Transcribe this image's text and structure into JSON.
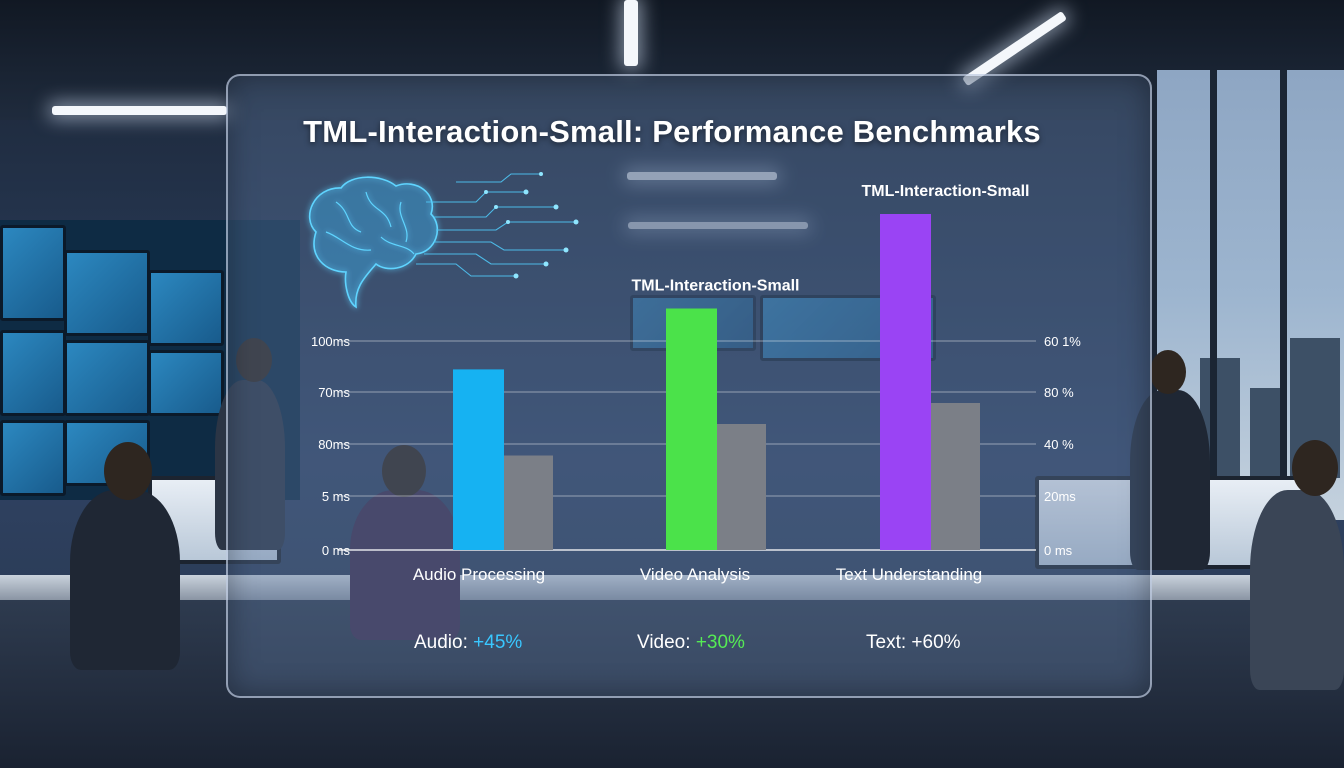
{
  "colors": {
    "audio": "#16b2f2",
    "video": "#4be24a",
    "text": "#9a44f4",
    "baseline": "#7b7f87",
    "audio_improve": "#39c7ff",
    "video_improve": "#55ea55",
    "text_improve": "#ffffff"
  },
  "chart_data": {
    "type": "bar",
    "title": "TML-Interaction-Small: Performance Benchmarks",
    "categories": [
      "Audio Processing",
      "Video Analysis",
      "Text Understanding"
    ],
    "series": [
      {
        "values": [
          86,
          115,
          160
        ],
        "color_key": "primary"
      },
      {
        "values": [
          45,
          60,
          70
        ],
        "color_key": "baseline"
      }
    ],
    "bar_labels": [
      "",
      "TML-Interaction-Small",
      "TML-Interaction-Small"
    ],
    "y_left_ticks": [
      "0 ms",
      "5 ms",
      "80ms",
      "70ms",
      "100ms"
    ],
    "y_right_ticks": [
      "0 ms",
      "20ms",
      "40 %",
      "80 %",
      "60 1%"
    ],
    "ylim": [
      0,
      120
    ],
    "grid": true,
    "icon": "brain-circuit-icon"
  },
  "improvements": [
    {
      "label": "Audio:",
      "value": "+45%"
    },
    {
      "label": "Video:",
      "value": "+30%"
    },
    {
      "label": "Text:",
      "value": "+60%"
    }
  ]
}
